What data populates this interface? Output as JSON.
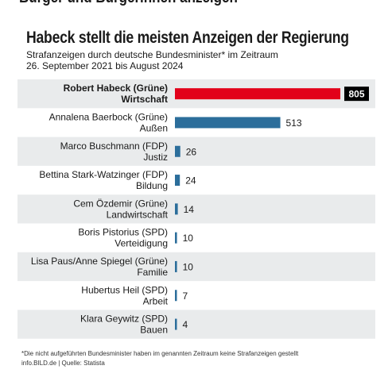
{
  "header": {
    "top_cut_text": "Bürger und Bürgerinnen anzeigen",
    "title": "Habeck stellt die meisten Anzeigen der Regierung",
    "subtitle_line1": "Strafanzeigen durch deutsche Bundesminister* im Zeitraum",
    "subtitle_line2": "26. September 2021 bis August 2024"
  },
  "footer": {
    "footnote": "*Die nicht aufgeführten Bundesminister haben im genannten Zeitraum keine Strafanzeigen gestellt",
    "source": "info.BILD.de | Quelle: Statista"
  },
  "colors": {
    "highlight": "#e2001a",
    "bar": "#2c6e9b",
    "row_band": "#e9ebec",
    "highlight_label_bg": "#000000"
  },
  "chart_data": {
    "type": "bar",
    "orientation": "horizontal",
    "title": "Habeck stellt die meisten Anzeigen der Regierung",
    "subtitle": "Strafanzeigen durch deutsche Bundesminister* im Zeitraum 26. September 2021 bis August 2024",
    "xlabel": "",
    "ylabel": "",
    "xlim": [
      0,
      805
    ],
    "grid": false,
    "legend": "none",
    "categories": [
      {
        "name": "Robert Habeck (Grüne)",
        "ministry": "Wirtschaft",
        "highlight": true
      },
      {
        "name": "Annalena Baerbock (Grüne)",
        "ministry": "Außen",
        "highlight": false
      },
      {
        "name": "Marco Buschmann (FDP)",
        "ministry": "Justiz",
        "highlight": false
      },
      {
        "name": "Bettina Stark-Watzinger (FDP)",
        "ministry": "Bildung",
        "highlight": false
      },
      {
        "name": "Cem Özdemir (Grüne)",
        "ministry": "Landwirtschaft",
        "highlight": false
      },
      {
        "name": "Boris Pistorius (SPD)",
        "ministry": "Verteidigung",
        "highlight": false
      },
      {
        "name": "Lisa Paus/Anne Spiegel (Grüne)",
        "ministry": "Familie",
        "highlight": false
      },
      {
        "name": "Hubertus Heil (SPD)",
        "ministry": "Arbeit",
        "highlight": false
      },
      {
        "name": "Klara Geywitz (SPD)",
        "ministry": "Bauen",
        "highlight": false
      }
    ],
    "values": [
      805,
      513,
      26,
      24,
      14,
      10,
      10,
      7,
      4
    ]
  }
}
